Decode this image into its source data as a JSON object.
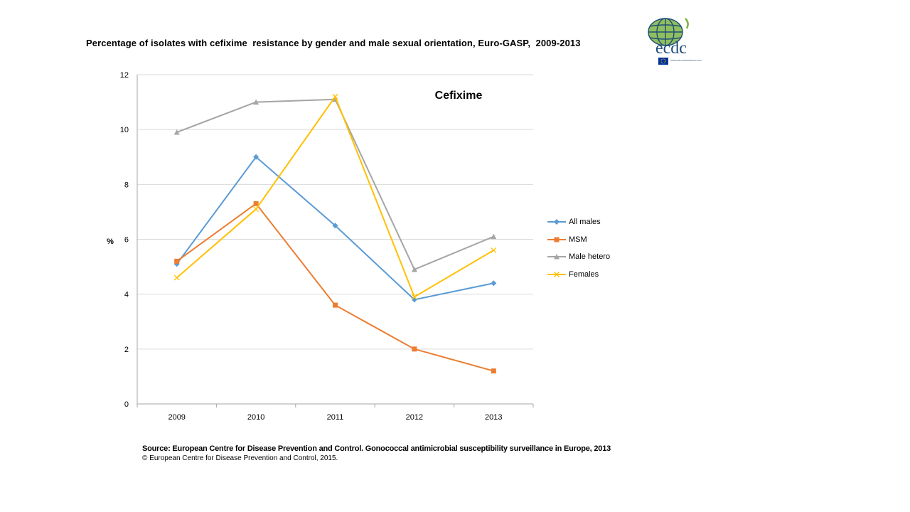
{
  "title": "Percentage of isolates with cefixime  resistance by gender and male sexual orientation, Euro-GASP,  2009-2013",
  "logo": {
    "text": "ecdc",
    "subtext": "EUROPEAN CENTRE FOR DISEASE PREVENTION AND CONTROL",
    "colors": {
      "globe": "#7cb342",
      "grid": "#1f4e79",
      "text": "#1f4e79",
      "flag": "#003399",
      "stars": "#ffcc00"
    }
  },
  "chart_data": {
    "type": "line",
    "title": "",
    "annotation": "Cefixime",
    "xlabel": "",
    "ylabel": "%",
    "categories": [
      "2009",
      "2010",
      "2011",
      "2012",
      "2013"
    ],
    "ylim": [
      0,
      12
    ],
    "yticks": [
      0,
      2,
      4,
      6,
      8,
      10,
      12
    ],
    "grid": true,
    "legend_position": "right",
    "series": [
      {
        "name": "All males",
        "values": [
          5.1,
          9.0,
          6.5,
          3.8,
          4.4
        ],
        "color": "#5b9bd5",
        "marker": "diamond"
      },
      {
        "name": "MSM",
        "values": [
          5.2,
          7.3,
          3.6,
          2.0,
          1.2
        ],
        "color": "#ed7d31",
        "marker": "square"
      },
      {
        "name": "Male hetero",
        "values": [
          9.9,
          11.0,
          11.1,
          4.9,
          6.1
        ],
        "color": "#a5a5a5",
        "marker": "triangle"
      },
      {
        "name": "Females",
        "values": [
          4.6,
          7.1,
          11.2,
          3.9,
          5.6
        ],
        "color": "#ffc000",
        "marker": "x"
      }
    ]
  },
  "source": {
    "main": "Source: European Centre for Disease Prevention and Control.  Gonococcal antimicrobial susceptibility surveillance in Europe, 2013",
    "copyright": "© European Centre for Disease Prevention and Control, 2015."
  }
}
